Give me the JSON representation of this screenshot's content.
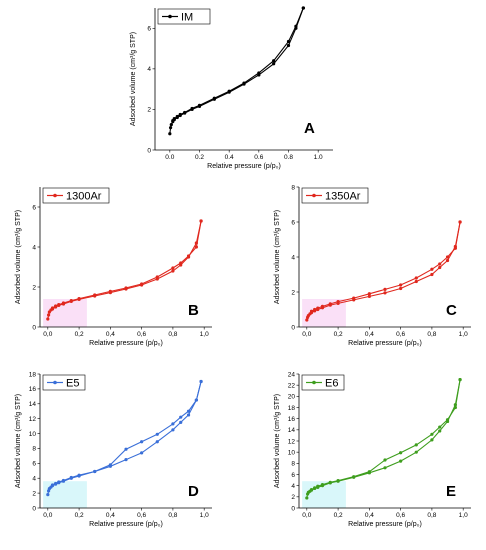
{
  "chart_data": [
    {
      "type": "line",
      "panel": "A",
      "legend": "IM",
      "color": "#000000",
      "highlight": "#ffffff",
      "xlabel": "Relative pressure (p/p₀)",
      "ylabel": "Adsorbed volume (cm³/g STP)",
      "xlim": [
        -0.1,
        1.1
      ],
      "ylim": [
        0,
        7
      ],
      "xticks": [
        0.0,
        0.2,
        0.4,
        0.6,
        0.8,
        1.0
      ],
      "yticks": [
        0,
        2,
        4,
        6
      ],
      "tick_labels_x": [
        "0.0",
        "0.2",
        "0.4",
        "0.6",
        "0.8",
        "1.0"
      ],
      "tick_labels_y": [
        "0",
        "2",
        "4",
        "6"
      ],
      "series": [
        {
          "role": "adsorption",
          "x": [
            0.0,
            0.005,
            0.01,
            0.02,
            0.03,
            0.05,
            0.07,
            0.1,
            0.15,
            0.2,
            0.3,
            0.4,
            0.5,
            0.6,
            0.7,
            0.8,
            0.85,
            0.9
          ],
          "y": [
            0.8,
            1.1,
            1.25,
            1.4,
            1.5,
            1.6,
            1.7,
            1.82,
            2.0,
            2.15,
            2.5,
            2.85,
            3.25,
            3.7,
            4.25,
            5.15,
            6.0,
            7.0
          ]
        },
        {
          "role": "desorption",
          "x": [
            0.9,
            0.85,
            0.8,
            0.7,
            0.6,
            0.5,
            0.4,
            0.3,
            0.2,
            0.15,
            0.1,
            0.07,
            0.05,
            0.03,
            0.02
          ],
          "y": [
            7.0,
            6.1,
            5.35,
            4.4,
            3.8,
            3.3,
            2.9,
            2.55,
            2.2,
            2.05,
            1.85,
            1.75,
            1.65,
            1.55,
            1.45
          ]
        }
      ]
    },
    {
      "type": "line",
      "panel": "B",
      "legend": "1300Ar",
      "color": "#e0281e",
      "highlight": "#f6c6f0",
      "xlabel": "Relative pressure (p/p₀)",
      "ylabel": "Adsorbed volume (cm³/g STP)",
      "xlim": [
        -0.05,
        1.05
      ],
      "ylim": [
        0,
        7
      ],
      "xticks": [
        0.0,
        0.2,
        0.4,
        0.6,
        0.8,
        1.0
      ],
      "yticks": [
        0,
        2,
        4,
        6
      ],
      "tick_labels_x": [
        "0,0",
        "0,2",
        "0,4",
        "0,6",
        "0,8",
        "1,0"
      ],
      "tick_labels_y": [
        "0",
        "2",
        "4",
        "6"
      ],
      "series": [
        {
          "role": "adsorption",
          "x": [
            0.0,
            0.005,
            0.01,
            0.02,
            0.03,
            0.05,
            0.07,
            0.1,
            0.15,
            0.2,
            0.3,
            0.4,
            0.5,
            0.6,
            0.7,
            0.8,
            0.85,
            0.9,
            0.95,
            0.98
          ],
          "y": [
            0.4,
            0.6,
            0.75,
            0.85,
            0.9,
            1.0,
            1.08,
            1.15,
            1.28,
            1.38,
            1.55,
            1.72,
            1.9,
            2.1,
            2.4,
            2.8,
            3.1,
            3.5,
            4.2,
            5.3
          ]
        },
        {
          "role": "desorption",
          "x": [
            0.98,
            0.95,
            0.9,
            0.85,
            0.8,
            0.7,
            0.6,
            0.5,
            0.4,
            0.3,
            0.2,
            0.15,
            0.1,
            0.07,
            0.05,
            0.03
          ],
          "y": [
            5.3,
            4.0,
            3.55,
            3.2,
            2.95,
            2.5,
            2.15,
            1.95,
            1.78,
            1.6,
            1.42,
            1.32,
            1.2,
            1.12,
            1.05,
            0.95
          ]
        }
      ]
    },
    {
      "type": "line",
      "panel": "C",
      "legend": "1350Ar",
      "color": "#e0281e",
      "highlight": "#f6c6f0",
      "xlabel": "Relative pressure (p/p₀)",
      "ylabel": "Adsorbed volume (cm³/g STP)",
      "xlim": [
        -0.05,
        1.05
      ],
      "ylim": [
        0,
        8
      ],
      "xticks": [
        0.0,
        0.2,
        0.4,
        0.6,
        0.8,
        1.0
      ],
      "yticks": [
        0,
        2,
        4,
        6,
        8
      ],
      "tick_labels_x": [
        "0,0",
        "0,2",
        "0,4",
        "0,6",
        "0,8",
        "1,0"
      ],
      "tick_labels_y": [
        "0",
        "2",
        "4",
        "6",
        "8"
      ],
      "series": [
        {
          "role": "adsorption",
          "x": [
            0.0,
            0.005,
            0.01,
            0.02,
            0.03,
            0.05,
            0.07,
            0.1,
            0.15,
            0.2,
            0.3,
            0.4,
            0.5,
            0.6,
            0.7,
            0.8,
            0.85,
            0.9,
            0.95,
            0.98
          ],
          "y": [
            0.4,
            0.55,
            0.65,
            0.75,
            0.82,
            0.92,
            1.0,
            1.1,
            1.25,
            1.35,
            1.55,
            1.75,
            1.95,
            2.2,
            2.6,
            3.0,
            3.4,
            3.8,
            4.6,
            6.0
          ]
        },
        {
          "role": "desorption",
          "x": [
            0.98,
            0.95,
            0.9,
            0.85,
            0.8,
            0.7,
            0.6,
            0.5,
            0.4,
            0.3,
            0.2,
            0.15,
            0.1,
            0.07,
            0.05,
            0.03
          ],
          "y": [
            6.0,
            4.5,
            4.0,
            3.6,
            3.3,
            2.8,
            2.4,
            2.15,
            1.9,
            1.65,
            1.45,
            1.32,
            1.18,
            1.08,
            1.0,
            0.9
          ]
        }
      ]
    },
    {
      "type": "line",
      "panel": "D",
      "legend": "E5",
      "color": "#3a6fd8",
      "highlight": "#b9f1f6",
      "xlabel": "Relative pressure (p/p₀)",
      "ylabel": "Adsorbed volume (cm³/g STP)",
      "xlim": [
        -0.05,
        1.05
      ],
      "ylim": [
        0,
        18
      ],
      "xticks": [
        0.0,
        0.2,
        0.4,
        0.6,
        0.8,
        1.0
      ],
      "yticks": [
        0,
        2,
        4,
        6,
        8,
        10,
        12,
        14,
        16,
        18
      ],
      "tick_labels_x": [
        "0,0",
        "0,2",
        "0,4",
        "0,6",
        "0,8",
        "1,0"
      ],
      "tick_labels_y": [
        "0",
        "2",
        "4",
        "6",
        "8",
        "10",
        "12",
        "14",
        "16",
        "18"
      ],
      "series": [
        {
          "role": "adsorption",
          "x": [
            0.0,
            0.005,
            0.01,
            0.02,
            0.03,
            0.05,
            0.07,
            0.1,
            0.15,
            0.2,
            0.3,
            0.4,
            0.5,
            0.6,
            0.7,
            0.8,
            0.85,
            0.9,
            0.95,
            0.98
          ],
          "y": [
            1.8,
            2.3,
            2.6,
            2.8,
            3.0,
            3.2,
            3.4,
            3.6,
            4.0,
            4.3,
            4.9,
            5.6,
            6.5,
            7.4,
            8.9,
            10.5,
            11.5,
            12.5,
            14.5,
            17.0
          ]
        },
        {
          "role": "desorption",
          "x": [
            0.98,
            0.95,
            0.9,
            0.85,
            0.8,
            0.7,
            0.6,
            0.5,
            0.4,
            0.3,
            0.2,
            0.15,
            0.1,
            0.07,
            0.05,
            0.03
          ],
          "y": [
            17.0,
            14.5,
            13.0,
            12.2,
            11.3,
            9.9,
            8.9,
            7.9,
            5.8,
            4.9,
            4.4,
            4.1,
            3.7,
            3.5,
            3.3,
            3.1
          ]
        }
      ]
    },
    {
      "type": "line",
      "panel": "E",
      "legend": "E6",
      "color": "#3e9e1e",
      "highlight": "#b9f1f6",
      "xlabel": "Relative pressure (p/p₀)",
      "ylabel": "Adsorbed volume (cm³/g STP)",
      "xlim": [
        -0.05,
        1.05
      ],
      "ylim": [
        0,
        24
      ],
      "xticks": [
        0.0,
        0.2,
        0.4,
        0.6,
        0.8,
        1.0
      ],
      "yticks": [
        0,
        2,
        4,
        6,
        8,
        10,
        12,
        14,
        16,
        18,
        20,
        22,
        24
      ],
      "tick_labels_x": [
        "0,0",
        "0,2",
        "0,4",
        "0,6",
        "0,8",
        "1,0"
      ],
      "tick_labels_y": [
        "0",
        "2",
        "4",
        "6",
        "8",
        "10",
        "12",
        "14",
        "16",
        "18",
        "20",
        "22",
        "24"
      ],
      "series": [
        {
          "role": "adsorption",
          "x": [
            0.0,
            0.005,
            0.01,
            0.02,
            0.03,
            0.05,
            0.07,
            0.1,
            0.15,
            0.2,
            0.3,
            0.4,
            0.5,
            0.6,
            0.7,
            0.8,
            0.85,
            0.9,
            0.95,
            0.98
          ],
          "y": [
            1.8,
            2.5,
            2.8,
            3.0,
            3.2,
            3.5,
            3.7,
            4.0,
            4.5,
            4.8,
            5.5,
            6.3,
            7.2,
            8.4,
            10.0,
            12.2,
            13.8,
            15.5,
            18.5,
            23.0
          ]
        },
        {
          "role": "desorption",
          "x": [
            0.98,
            0.95,
            0.9,
            0.85,
            0.8,
            0.7,
            0.6,
            0.5,
            0.4,
            0.3,
            0.2,
            0.15,
            0.1,
            0.07,
            0.05,
            0.03
          ],
          "y": [
            23.0,
            18.0,
            15.8,
            14.5,
            13.2,
            11.3,
            9.9,
            8.6,
            6.5,
            5.6,
            4.9,
            4.6,
            4.2,
            3.9,
            3.6,
            3.3
          ]
        }
      ]
    }
  ]
}
